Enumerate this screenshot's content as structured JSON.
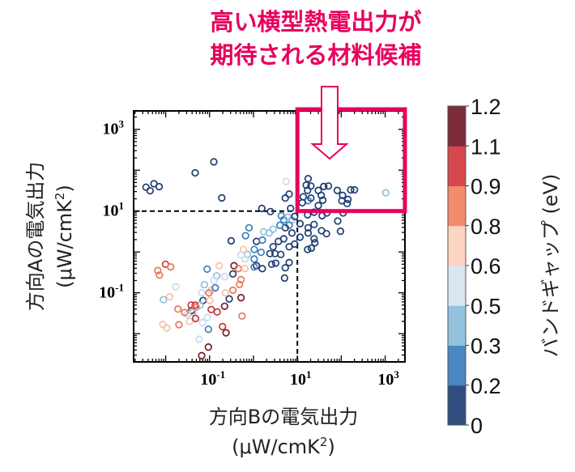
{
  "annotation": {
    "line1": "高い横型熱電出力が",
    "line2": "期待される材料候補",
    "color": "#e8005e"
  },
  "chart_data": {
    "type": "scatter",
    "xlabel": "方向Bの電気出力",
    "xlabel_unit": "(μW/cmK",
    "xlabel_unit_sup": "2",
    "xlabel_unit_close": ")",
    "ylabel": "方向Aの電気出力",
    "ylabel_unit": "(μW/cmK",
    "ylabel_unit_sup": "2",
    "ylabel_unit_close": ")",
    "xscale": "log",
    "yscale": "log",
    "xlim": [
      0.00186,
      2820
    ],
    "ylim": [
      0.00204,
      2820
    ],
    "xticks": [
      {
        "base": "10",
        "exp": "-1",
        "value": 0.1
      },
      {
        "base": "10",
        "exp": "1",
        "value": 10
      },
      {
        "base": "10",
        "exp": "3",
        "value": 1000
      }
    ],
    "yticks": [
      {
        "base": "10",
        "exp": "3",
        "value": 1000
      },
      {
        "base": "10",
        "exp": "1",
        "value": 10
      },
      {
        "base": "10",
        "exp": "-1",
        "value": 0.1
      }
    ],
    "grid": false,
    "reference_lines": {
      "x": 10,
      "y": 10,
      "style": "dashed"
    },
    "highlight_region": {
      "x_min": 10,
      "y_min": 10
    },
    "colorbar": {
      "label": "バンドギャップ (eV)",
      "ticks": [
        "0",
        "0.2",
        "0.3",
        "0.5",
        "0.6",
        "0.8",
        "0.9",
        "1.1",
        "1.2"
      ],
      "bins": [
        {
          "min": 0,
          "max": 0.2,
          "color": "#2f4d7e"
        },
        {
          "min": 0.2,
          "max": 0.3,
          "color": "#4a86c0"
        },
        {
          "min": 0.3,
          "max": 0.5,
          "color": "#93c3df"
        },
        {
          "min": 0.5,
          "max": 0.6,
          "color": "#dce6f2"
        },
        {
          "min": 0.6,
          "max": 0.8,
          "color": "#fdd4c2"
        },
        {
          "min": 0.8,
          "max": 0.9,
          "color": "#f48a6e"
        },
        {
          "min": 0.9,
          "max": 1.1,
          "color": "#d6484c"
        },
        {
          "min": 1.1,
          "max": 1.2,
          "color": "#7b2b3a"
        }
      ]
    },
    "marker_colors": [
      "#1f3f73",
      "#3f7fb8",
      "#8fbfdf",
      "#c9dced",
      "#f5c2ab",
      "#e9765d",
      "#c73a3a",
      "#7a1f2a"
    ],
    "point_fields": [
      "x",
      "y",
      "band_gap_eV"
    ],
    "points": [
      [
        0.00356,
        38.3,
        0.1
      ],
      [
        0.0044,
        31.4,
        0.1
      ],
      [
        0.0054,
        46.7,
        0.1
      ],
      [
        0.0071,
        39.5,
        0.1
      ],
      [
        0.047,
        86,
        0.1
      ],
      [
        0.125,
        160,
        0.1
      ],
      [
        0.19,
        21,
        0.1
      ],
      [
        5.5,
        53,
        0.55
      ],
      [
        17.6,
        62,
        0.1
      ],
      [
        15.9,
        43,
        0.1
      ],
      [
        20.3,
        41,
        0.1
      ],
      [
        17.1,
        32,
        0.1
      ],
      [
        13.6,
        22.4,
        0.1
      ],
      [
        17.6,
        17.9,
        0.25
      ],
      [
        20.3,
        20.8,
        0.1
      ],
      [
        30,
        32,
        0.1
      ],
      [
        40,
        40,
        0.1
      ],
      [
        51,
        41,
        0.1
      ],
      [
        35,
        24.2,
        0.1
      ],
      [
        38,
        18.4,
        0.1
      ],
      [
        81,
        32,
        0.1
      ],
      [
        107,
        24.2,
        0.1
      ],
      [
        103,
        17.9,
        0.1
      ],
      [
        142,
        19.3,
        0.1
      ],
      [
        164,
        33,
        0.1
      ],
      [
        200,
        33,
        0.1
      ],
      [
        136,
        15.3,
        0.1
      ],
      [
        30,
        13.6,
        0.1
      ],
      [
        12.9,
        16,
        0.1
      ],
      [
        1030,
        28,
        0.4
      ],
      [
        6.5,
        26,
        0.1
      ],
      [
        5.3,
        20.8,
        0.1
      ],
      [
        1.55,
        11.6,
        0.1
      ],
      [
        2.44,
        9.7,
        0.1
      ],
      [
        7.0,
        11.6,
        0.1
      ],
      [
        17.1,
        8.1,
        0.1
      ],
      [
        24,
        9.4,
        0.1
      ],
      [
        36.6,
        7.7,
        0.1
      ],
      [
        47,
        9.0,
        0.1
      ],
      [
        110,
        9.0,
        0.1
      ],
      [
        11.5,
        4.9,
        0.1
      ],
      [
        17.6,
        3.9,
        0.1
      ],
      [
        24,
        4.7,
        0.1
      ],
      [
        35.6,
        3.3,
        0.1
      ],
      [
        46,
        2.8,
        0.1
      ],
      [
        83,
        5.7,
        0.1
      ],
      [
        96,
        3.2,
        0.1
      ],
      [
        11.5,
        2.3,
        0.1
      ],
      [
        17.6,
        2.9,
        0.1
      ],
      [
        24,
        2.1,
        0.1
      ],
      [
        17.1,
        1.15,
        0.1
      ],
      [
        20.8,
        1.24,
        0.1
      ],
      [
        25,
        1.68,
        0.1
      ],
      [
        4.3,
        7.7,
        0.25
      ],
      [
        4.9,
        6.1,
        0.25
      ],
      [
        6.1,
        7.1,
        0.4
      ],
      [
        7.5,
        6.1,
        0.4
      ],
      [
        6.5,
        4.5,
        0.25
      ],
      [
        8.7,
        7.4,
        0.1
      ],
      [
        5.3,
        3.9,
        0.1
      ],
      [
        4.0,
        4.5,
        0.25
      ],
      [
        7.5,
        2.9,
        0.1
      ],
      [
        4.9,
        2.1,
        0.1
      ],
      [
        6.5,
        1.34,
        0.1
      ],
      [
        8.7,
        1.56,
        0.1
      ],
      [
        3.7,
        1.81,
        0.1
      ],
      [
        2.8,
        1.34,
        0.1
      ],
      [
        2.37,
        0.91,
        0.1
      ],
      [
        3.1,
        0.91,
        0.1
      ],
      [
        4.2,
        0.87,
        0.1
      ],
      [
        3.2,
        0.53,
        0.1
      ],
      [
        2.6,
        0.5,
        0.1
      ],
      [
        6.5,
        0.55,
        0.1
      ],
      [
        5.3,
        0.41,
        0.1
      ],
      [
        5.1,
        0.23,
        0.1
      ],
      [
        1.17,
        1.81,
        0.1
      ],
      [
        1.59,
        1.95,
        0.25
      ],
      [
        1.71,
        3.1,
        0.4
      ],
      [
        2.27,
        2.9,
        0.4
      ],
      [
        2.8,
        3.6,
        0.4
      ],
      [
        0.79,
        3.9,
        0.25
      ],
      [
        0.66,
        2.5,
        0.25
      ],
      [
        0.31,
        1.87,
        0.1
      ],
      [
        1.04,
        1.15,
        0.25
      ],
      [
        1.49,
        0.98,
        0.25
      ],
      [
        0.73,
        0.87,
        0.4
      ],
      [
        1.04,
        0.67,
        0.25
      ],
      [
        1.17,
        0.46,
        0.1
      ],
      [
        1.59,
        0.39,
        0.1
      ],
      [
        1.04,
        0.43,
        0.25
      ],
      [
        0.59,
        1.15,
        0.7
      ],
      [
        0.52,
        0.85,
        0.55
      ],
      [
        0.64,
        0.67,
        0.55
      ],
      [
        0.36,
        0.46,
        1.15
      ],
      [
        0.45,
        0.39,
        0.85
      ],
      [
        0.64,
        0.39,
        0.7
      ],
      [
        0.34,
        0.29,
        0.1
      ],
      [
        0.52,
        0.21,
        0.85
      ],
      [
        0.48,
        0.16,
        0.85
      ],
      [
        0.34,
        0.116,
        0.85
      ],
      [
        0.52,
        0.076,
        1.15
      ],
      [
        0.55,
        0.027,
        0.85
      ],
      [
        0.28,
        0.071,
        0.1
      ],
      [
        0.23,
        0.1,
        0.7
      ],
      [
        0.22,
        0.047,
        1.15
      ],
      [
        0.197,
        0.0149,
        1.0
      ],
      [
        0.237,
        0.0105,
        1.15
      ],
      [
        0.166,
        0.46,
        0.7
      ],
      [
        0.145,
        0.26,
        0.4
      ],
      [
        0.22,
        0.25,
        0.55
      ],
      [
        0.125,
        0.2,
        0.55
      ],
      [
        0.088,
        0.38,
        0.25
      ],
      [
        0.076,
        0.158,
        0.4
      ],
      [
        0.066,
        0.1,
        0.55
      ],
      [
        0.109,
        0.116,
        0.7
      ],
      [
        0.135,
        0.132,
        0.25
      ],
      [
        0.097,
        0.1,
        0.85
      ],
      [
        0.071,
        0.065,
        0.1
      ],
      [
        0.06,
        0.05,
        0.4
      ],
      [
        0.101,
        0.065,
        0.7
      ],
      [
        0.047,
        0.05,
        1.0
      ],
      [
        0.039,
        0.037,
        1.15
      ],
      [
        0.038,
        0.05,
        1.0
      ],
      [
        0.049,
        0.045,
        0.85
      ],
      [
        0.041,
        0.033,
        0.4
      ],
      [
        0.031,
        0.03,
        0.55
      ],
      [
        0.027,
        0.033,
        0.85
      ],
      [
        0.019,
        0.04,
        0.85
      ],
      [
        0.02,
        0.0166,
        0.85
      ],
      [
        0.035,
        0.02,
        0.7
      ],
      [
        0.048,
        0.0235,
        1.0
      ],
      [
        0.069,
        0.0187,
        0.55
      ],
      [
        0.089,
        0.025,
        0.55
      ],
      [
        0.109,
        0.039,
        1.0
      ],
      [
        0.149,
        0.034,
        1.0
      ],
      [
        0.094,
        0.0128,
        0.25
      ],
      [
        0.058,
        0.0073,
        0.55
      ],
      [
        0.094,
        0.0047,
        1.15
      ],
      [
        0.066,
        0.0029,
        1.15
      ],
      [
        0.0099,
        0.5,
        1.0
      ],
      [
        0.013,
        0.43,
        0.85
      ],
      [
        0.0066,
        0.35,
        0.85
      ],
      [
        0.0072,
        0.27,
        0.85
      ],
      [
        0.017,
        0.14,
        0.55
      ],
      [
        0.0122,
        0.08,
        0.7
      ],
      [
        0.0089,
        0.068,
        0.4
      ],
      [
        0.0086,
        0.0168,
        0.7
      ],
      [
        0.0106,
        0.0138,
        0.7
      ]
    ]
  }
}
